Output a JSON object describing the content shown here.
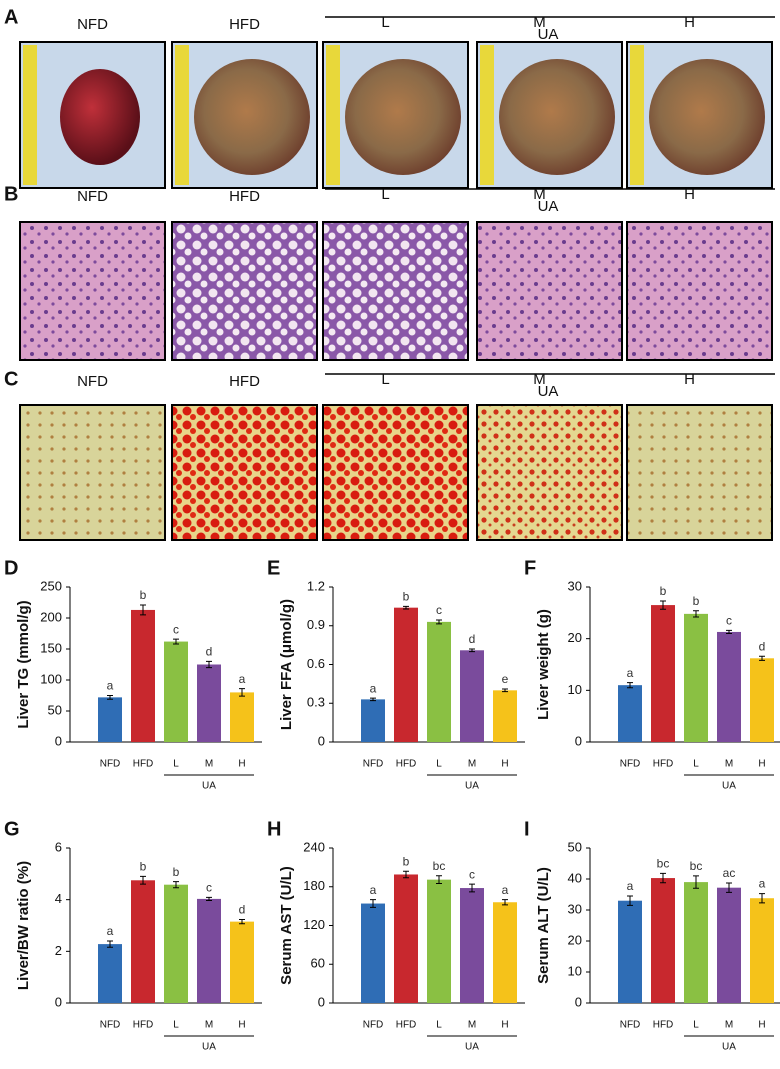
{
  "image_panels": [
    {
      "label": "A",
      "groups": [
        "NFD",
        "HFD",
        "L",
        "M",
        "H"
      ],
      "group_label": "UA"
    },
    {
      "label": "B",
      "groups": [
        "NFD",
        "HFD",
        "L",
        "M",
        "H"
      ],
      "group_label": "UA"
    },
    {
      "label": "C",
      "groups": [
        "NFD",
        "HFD",
        "L",
        "M",
        "H"
      ],
      "group_label": "UA"
    }
  ],
  "chart_data": [
    {
      "type": "bar",
      "panel_label": "D",
      "y_label": "Liver TG (mmol/g)",
      "categories": [
        "NFD",
        "HFD",
        "L",
        "M",
        "H"
      ],
      "group_label": "UA",
      "values": [
        72,
        213,
        162,
        125,
        80
      ],
      "errors": [
        3,
        8,
        4,
        5,
        6
      ],
      "annotations": [
        "a",
        "b",
        "c",
        "d",
        "a"
      ],
      "colors": [
        "#2f6db5",
        "#c8282e",
        "#8ac043",
        "#7a4b9c",
        "#f5c21a"
      ],
      "ylim": [
        0,
        250
      ],
      "yticks": [
        0,
        50,
        100,
        150,
        200,
        250
      ]
    },
    {
      "type": "bar",
      "panel_label": "E",
      "y_label": "Liver FFA (μmol/g)",
      "categories": [
        "NFD",
        "HFD",
        "L",
        "M",
        "H"
      ],
      "group_label": "UA",
      "values": [
        0.33,
        1.04,
        0.93,
        0.71,
        0.4
      ],
      "errors": [
        0.01,
        0.01,
        0.015,
        0.01,
        0.01
      ],
      "annotations": [
        "a",
        "b",
        "c",
        "d",
        "e"
      ],
      "colors": [
        "#2f6db5",
        "#c8282e",
        "#8ac043",
        "#7a4b9c",
        "#f5c21a"
      ],
      "ylim": [
        0,
        1.2
      ],
      "yticks": [
        0,
        0.3,
        0.6,
        0.9,
        1.2
      ]
    },
    {
      "type": "bar",
      "panel_label": "F",
      "y_label": "Liver weight (g)",
      "categories": [
        "NFD",
        "HFD",
        "L",
        "M",
        "H"
      ],
      "group_label": "UA",
      "values": [
        11,
        26.5,
        24.8,
        21.3,
        16.2
      ],
      "errors": [
        0.5,
        0.8,
        0.6,
        0.3,
        0.4
      ],
      "annotations": [
        "a",
        "b",
        "b",
        "c",
        "d"
      ],
      "colors": [
        "#2f6db5",
        "#c8282e",
        "#8ac043",
        "#7a4b9c",
        "#f5c21a"
      ],
      "ylim": [
        0,
        30
      ],
      "yticks": [
        0,
        10,
        20,
        30
      ]
    },
    {
      "type": "bar",
      "panel_label": "G",
      "y_label": "Liver/BW ratio (%)",
      "categories": [
        "NFD",
        "HFD",
        "L",
        "M",
        "H"
      ],
      "group_label": "UA",
      "values": [
        2.28,
        4.75,
        4.58,
        4.03,
        3.15
      ],
      "errors": [
        0.12,
        0.15,
        0.12,
        0.06,
        0.08
      ],
      "annotations": [
        "a",
        "b",
        "b",
        "c",
        "d"
      ],
      "colors": [
        "#2f6db5",
        "#c8282e",
        "#8ac043",
        "#7a4b9c",
        "#f5c21a"
      ],
      "ylim": [
        0,
        6
      ],
      "yticks": [
        0,
        2,
        4,
        6
      ]
    },
    {
      "type": "bar",
      "panel_label": "H",
      "y_label": "Serum AST (U/L)",
      "categories": [
        "NFD",
        "HFD",
        "L",
        "M",
        "H"
      ],
      "group_label": "UA",
      "values": [
        154,
        199,
        191,
        178,
        156
      ],
      "errors": [
        6,
        5,
        6,
        6,
        4
      ],
      "annotations": [
        "a",
        "b",
        "bc",
        "c",
        "a"
      ],
      "colors": [
        "#2f6db5",
        "#c8282e",
        "#8ac043",
        "#7a4b9c",
        "#f5c21a"
      ],
      "ylim": [
        0,
        240
      ],
      "yticks": [
        0,
        60,
        120,
        180,
        240
      ]
    },
    {
      "type": "bar",
      "panel_label": "I",
      "y_label": "Serum ALT (U/L)",
      "categories": [
        "NFD",
        "HFD",
        "L",
        "M",
        "H"
      ],
      "group_label": "UA",
      "values": [
        33,
        40.3,
        39,
        37.2,
        33.8
      ],
      "errors": [
        1.5,
        1.5,
        2,
        1.5,
        1.5
      ],
      "annotations": [
        "a",
        "bc",
        "bc",
        "ac",
        "a"
      ],
      "colors": [
        "#2f6db5",
        "#c8282e",
        "#8ac043",
        "#7a4b9c",
        "#f5c21a"
      ],
      "ylim": [
        0,
        50
      ],
      "yticks": [
        0,
        10,
        20,
        30,
        40,
        50
      ]
    }
  ]
}
